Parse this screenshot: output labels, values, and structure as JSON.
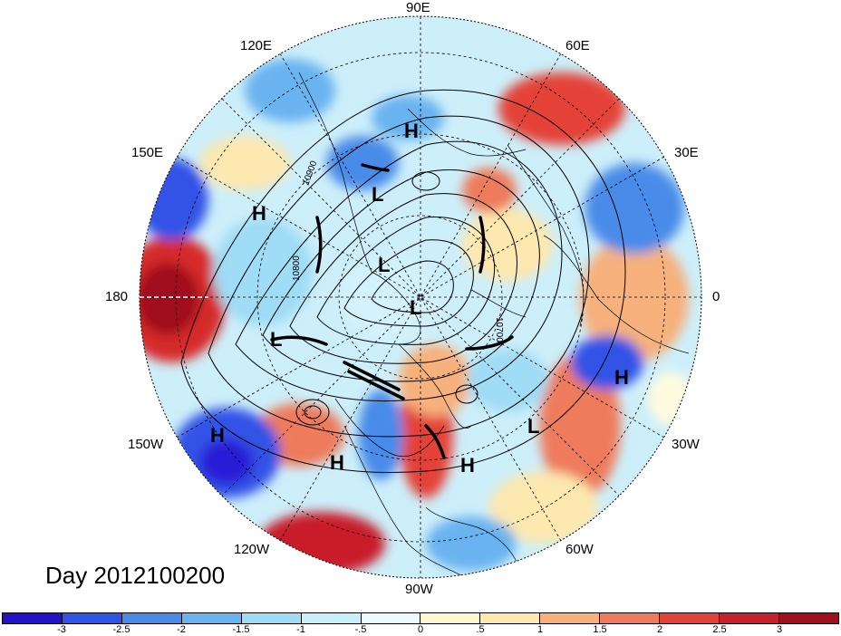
{
  "title": "Day 2012100200",
  "lon_labels": {
    "e90": "90E",
    "e120": "120E",
    "e60": "60E",
    "e150": "150E",
    "e30": "30E",
    "lon180": "180",
    "lon0": "0",
    "w150": "150W",
    "w30": "30W",
    "w120": "120W",
    "w60": "60W",
    "w90": "90W"
  },
  "contour_labels": [
    "10900",
    "10800",
    "10700"
  ],
  "pressure_centers": [
    "H",
    "H",
    "L",
    "L",
    "L",
    "L",
    "H",
    "L",
    "H",
    "H",
    "H"
  ],
  "colorbar": {
    "labels": [
      "-3",
      "-2.5",
      "-2",
      "-1.5",
      "-1",
      "-.5",
      "0",
      ".5",
      "1",
      "1.5",
      "2",
      "2.5",
      "3"
    ],
    "colors": [
      "#2a1fd6",
      "#3153e6",
      "#4a8be8",
      "#69b3f0",
      "#9fdcf5",
      "#d3f2fb",
      "#fffbe0",
      "#fde8b0",
      "#f6b17d",
      "#ee7b5c",
      "#e44339",
      "#c81f2c",
      "#a0101e"
    ]
  }
}
